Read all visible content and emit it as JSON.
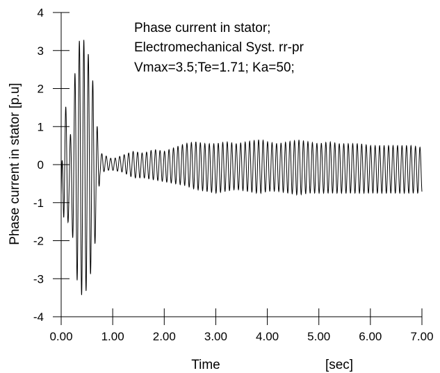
{
  "chart_data": {
    "type": "line",
    "xlabel": "Time",
    "xunit": "[sec]",
    "ylabel": "Phase current in stator [p.u]",
    "xlim": [
      0,
      7
    ],
    "ylim": [
      -4,
      4
    ],
    "x_ticks": [
      0,
      1,
      2,
      3,
      4,
      5,
      6,
      7
    ],
    "x_tick_labels": [
      "0.00",
      "1.00",
      "2.00",
      "3.00",
      "4.00",
      "5.00",
      "6.00",
      "7.00"
    ],
    "y_ticks": [
      4,
      3,
      2,
      1,
      0,
      -1,
      -2,
      -3,
      -4
    ],
    "y_tick_labels": [
      "4",
      "3",
      "2",
      "1",
      "0",
      "-1",
      "-2",
      "-3",
      "-4"
    ],
    "annotations": [
      "Phase current in stator;",
      "Electromechanical Syst. rr-pr",
      "Vmax=3.5;Te=1.71; Ka=50;"
    ],
    "grid": false,
    "line_color": "#000000",
    "series": [
      {
        "envelope_x": [
          0.0,
          0.05,
          0.1,
          0.15,
          0.2,
          0.3,
          0.4,
          0.5,
          0.6,
          0.7,
          0.75,
          0.8,
          0.9,
          1.0,
          1.2,
          1.4,
          1.6,
          1.8,
          2.0,
          2.2,
          2.4,
          2.6,
          2.8,
          3.0,
          3.2,
          3.4,
          3.6,
          3.8,
          3.9,
          4.0,
          4.2,
          4.4,
          4.6,
          4.8,
          5.0,
          5.2,
          5.4,
          5.6,
          5.8,
          6.0,
          6.2,
          6.4,
          6.6,
          6.8,
          7.0
        ],
        "envelope_max": [
          -0.8,
          2.5,
          1.3,
          0.5,
          1.0,
          3.1,
          3.4,
          3.1,
          2.4,
          1.0,
          0.25,
          0.3,
          0.2,
          0.15,
          0.25,
          0.35,
          0.3,
          0.4,
          0.35,
          0.45,
          0.55,
          0.6,
          0.55,
          0.55,
          0.6,
          0.55,
          0.6,
          0.65,
          0.65,
          0.6,
          0.55,
          0.6,
          0.65,
          0.6,
          0.55,
          0.6,
          0.55,
          0.55,
          0.55,
          0.5,
          0.5,
          0.5,
          0.5,
          0.5,
          0.45
        ],
        "envelope_min": [
          -0.8,
          -1.4,
          -2.0,
          -1.3,
          -1.6,
          -3.0,
          -3.45,
          -3.3,
          -2.7,
          -1.6,
          -0.3,
          -0.2,
          -0.15,
          -0.15,
          -0.2,
          -0.35,
          -0.35,
          -0.4,
          -0.45,
          -0.5,
          -0.55,
          -0.65,
          -0.7,
          -0.75,
          -0.7,
          -0.65,
          -0.7,
          -0.75,
          -0.75,
          -0.7,
          -0.7,
          -0.75,
          -0.8,
          -0.75,
          -0.75,
          -0.75,
          -0.75,
          -0.75,
          -0.75,
          -0.75,
          -0.75,
          -0.75,
          -0.75,
          -0.75,
          -0.75
        ],
        "oscillation_cycles_per_sec": 11.5
      }
    ]
  }
}
